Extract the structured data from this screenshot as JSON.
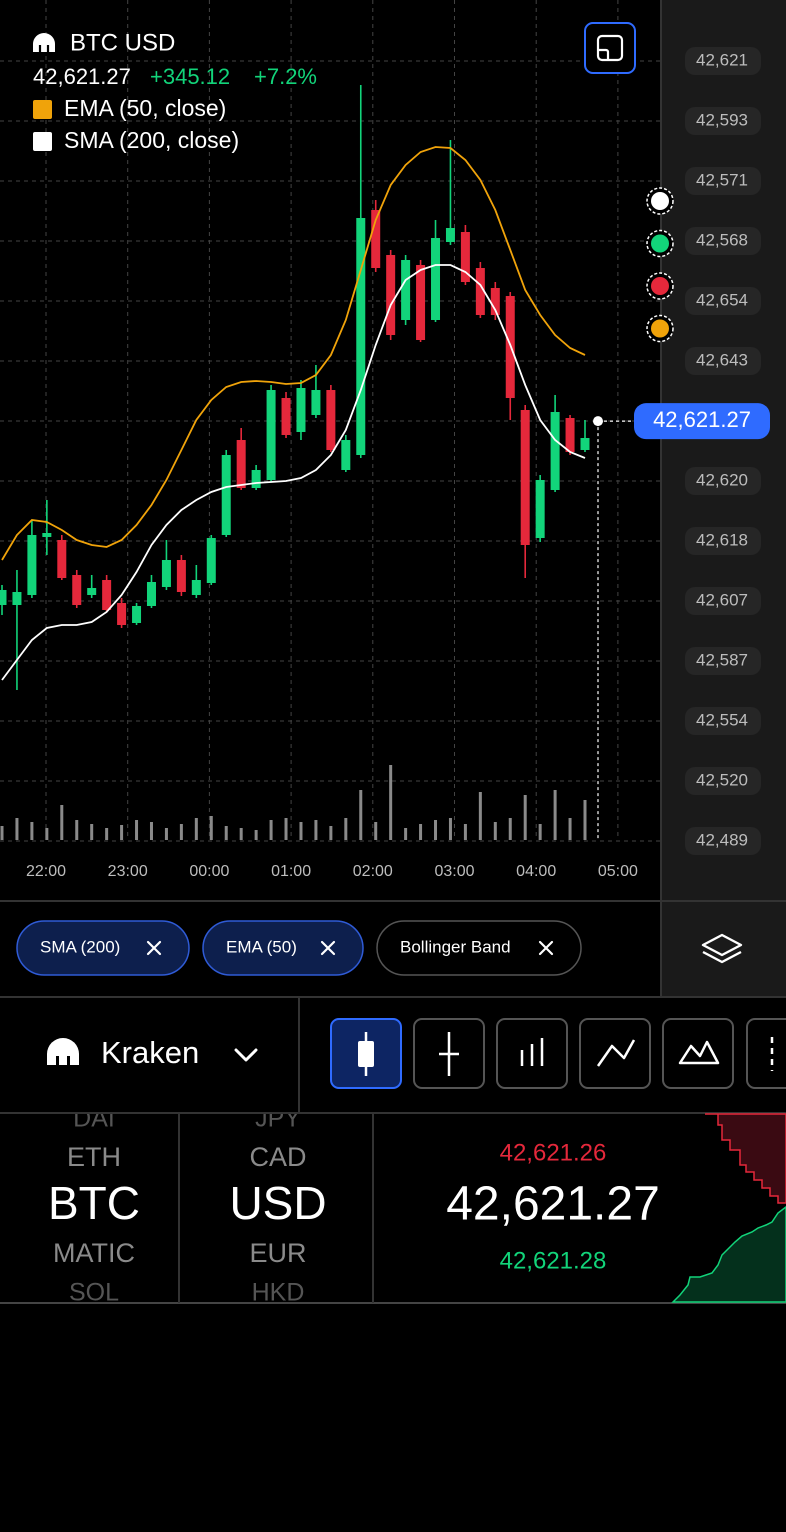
{
  "header": {
    "symbol": "BTC USD",
    "price": "42,621.27",
    "change": "+345.12",
    "change_pct": "+7.2%",
    "indicators": [
      {
        "name": "EMA (50, close)",
        "color": "#f0a30a"
      },
      {
        "name": "SMA (200, close)",
        "color": "#ffffff"
      }
    ]
  },
  "chart_data": {
    "type": "candlestick",
    "ylim": [
      42537.5,
      42705.5
    ],
    "up_color": "#12d47a",
    "down_color": "#e5283b",
    "open": [
      42584.5,
      42584.5,
      42586.5,
      42598.1,
      42597.5,
      42590.5,
      42586.5,
      42589.5,
      42584.9,
      42580.9,
      42584.3,
      42588.1,
      42593.5,
      42586.5,
      42588.9,
      42598.5,
      42617.5,
      42607.9,
      42609.5,
      42625.9,
      42619.1,
      42622.5,
      42627.5,
      42611.5,
      42614.5,
      42663.5,
      42654.5,
      42641.5,
      42652.5,
      42641.5,
      42657.1,
      42659.1,
      42651.9,
      42647.9,
      42646.3,
      42623.5,
      42597.9,
      42607.5,
      42621.9,
      42615.5
    ],
    "high": [
      42588.5,
      42591.5,
      42601.5,
      42605.5,
      42598.5,
      42591.5,
      42590.5,
      42590.5,
      42585.9,
      42584.9,
      42590.5,
      42597.5,
      42594.5,
      42592.5,
      42598.5,
      42615.5,
      42619.9,
      42612.5,
      42628.5,
      42627.1,
      42629.5,
      42632.5,
      42628.5,
      42618.5,
      42688.5,
      42665.5,
      42655.5,
      42654.5,
      42653.5,
      42661.5,
      42677.5,
      42660.5,
      42653.1,
      42649.1,
      42647.1,
      42624.5,
      42610.5,
      42626.5,
      42622.5,
      42621.5
    ],
    "low": [
      42582.5,
      42567.5,
      42585.9,
      42594.5,
      42589.5,
      42583.9,
      42585.9,
      42583.1,
      42579.9,
      42580.5,
      42583.9,
      42587.5,
      42586.3,
      42585.9,
      42588.5,
      42598.1,
      42607.5,
      42607.5,
      42609.1,
      42617.9,
      42617.5,
      42621.9,
      42615.1,
      42611.1,
      42613.9,
      42651.1,
      42637.5,
      42640.5,
      42637.1,
      42641.1,
      42656.5,
      42648.5,
      42641.9,
      42641.5,
      42621.5,
      42589.9,
      42597.1,
      42607.1,
      42614.5,
      42615.1
    ],
    "close": [
      42587.5,
      42587.1,
      42598.5,
      42598.9,
      42589.9,
      42584.5,
      42587.9,
      42583.5,
      42580.5,
      42584.3,
      42589.1,
      42593.5,
      42587.1,
      42589.5,
      42597.9,
      42614.5,
      42607.9,
      42611.5,
      42627.5,
      42618.5,
      42627.9,
      42627.5,
      42615.5,
      42617.5,
      42661.9,
      42651.9,
      42638.5,
      42653.5,
      42637.5,
      42657.9,
      42659.9,
      42649.1,
      42642.5,
      42642.5,
      42625.9,
      42596.5,
      42609.5,
      42623.1,
      42615.1,
      42617.9
    ],
    "series": [
      {
        "name": "EMA (50, close)",
        "color": "#f0a30a",
        "values": [
          42593.5,
          42598.5,
          42601.5,
          42601.1,
          42599.5,
          42597.5,
          42596.5,
          42596.1,
          42597.5,
          42600.5,
          42604.5,
          42609.5,
          42615.5,
          42621.5,
          42625.5,
          42628.1,
          42629.1,
          42629.3,
          42629.1,
          42628.7,
          42628.9,
          42630.5,
          42634.5,
          42641.5,
          42651.5,
          42661.5,
          42668.5,
          42672.5,
          42675.1,
          42676.1,
          42675.9,
          42673.5,
          42669.5,
          42663.5,
          42655.5,
          42647.5,
          42642.5,
          42638.5,
          42635.9,
          42634.5
        ]
      },
      {
        "name": "SMA (200, close)",
        "color": "#ffffff",
        "values": [
          42569.5,
          42573.5,
          42577.5,
          42579.9,
          42580.5,
          42580.5,
          42581.1,
          42583.1,
          42586.5,
          42591.1,
          42596.5,
          42600.5,
          42603.5,
          42605.5,
          42607.1,
          42608.1,
          42608.5,
          42608.9,
          42609.1,
          42609.3,
          42609.9,
          42611.5,
          42614.5,
          42619.5,
          42627.5,
          42636.5,
          42644.5,
          42649.5,
          42651.5,
          42652.5,
          42652.5,
          42651.1,
          42648.5,
          42643.5,
          42636.5,
          42628.5,
          42621.5,
          42617.5,
          42615.1,
          42613.9
        ]
      }
    ],
    "volume": [
      14,
      22,
      18,
      12,
      35,
      20,
      16,
      12,
      15,
      20,
      18,
      12,
      16,
      22,
      24,
      14,
      12,
      10,
      20,
      22,
      18,
      20,
      14,
      22,
      50,
      18,
      75,
      12,
      16,
      20,
      22,
      16,
      48,
      18,
      22,
      45,
      16,
      50,
      22,
      40
    ],
    "volume_lim": [
      0,
      100
    ],
    "volume_color": "#8a8a8a",
    "grid": true,
    "current_price": {
      "value": 42621.27,
      "label": "42,621.27"
    },
    "price_labels": [
      "42,621",
      "42,593",
      "42,571",
      "42,568",
      "42,654",
      "42,643",
      "42,621",
      "42,620",
      "42,618",
      "42,607",
      "42,587",
      "42,554",
      "42,520",
      "42,489"
    ],
    "time_labels": [
      "22:00",
      "23:00",
      "00:00",
      "01:00",
      "02:00",
      "03:00",
      "04:00",
      "05:00"
    ],
    "markers": [
      "#ffffff",
      "#12d47a",
      "#e5283b",
      "#f0a30a"
    ]
  },
  "indicator_chips": [
    {
      "label": "SMA (200)",
      "active": true
    },
    {
      "label": "EMA (50)",
      "active": true
    },
    {
      "label": "Bollinger Band",
      "active": false
    }
  ],
  "exchange": "Kraken",
  "base_list": {
    "items": [
      "DAI",
      "ETH",
      "BTC",
      "MATIC",
      "SOL"
    ],
    "selected": 2
  },
  "quote_list": {
    "items": [
      "JPY",
      "CAD",
      "USD",
      "EUR",
      "HKD"
    ],
    "selected": 2
  },
  "quote": {
    "ask": "42,621.26",
    "last": "42,621.27",
    "bid": "42,621.28"
  }
}
